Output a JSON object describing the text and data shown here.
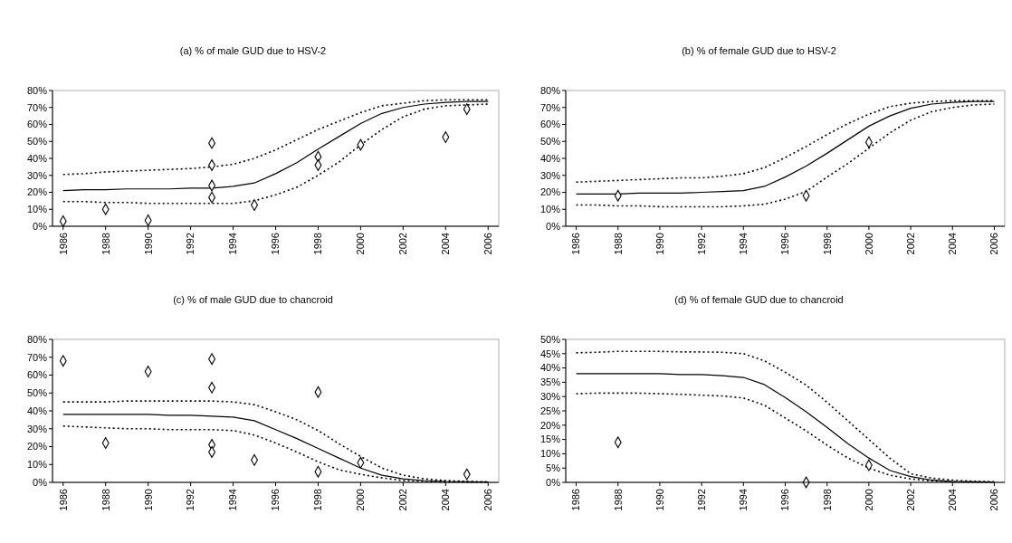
{
  "chart_data": [
    {
      "type": "line",
      "title": "(a) % of male GUD due to HSV-2",
      "xlim": [
        1985.5,
        2006.5
      ],
      "xticks": [
        1986,
        1988,
        1990,
        1992,
        1994,
        1996,
        1998,
        2000,
        2002,
        2004,
        2006
      ],
      "ylim": [
        0,
        80
      ],
      "yticks": [
        {
          "value": 0,
          "label": "0%"
        },
        {
          "value": 10,
          "label": "10%"
        },
        {
          "value": 20,
          "label": "20%"
        },
        {
          "value": 30,
          "label": "30%"
        },
        {
          "value": 40,
          "label": "40%"
        },
        {
          "value": 50,
          "label": "50%"
        },
        {
          "value": 60,
          "label": "60%"
        },
        {
          "value": 70,
          "label": "70%"
        },
        {
          "value": 80,
          "label": "80%"
        }
      ],
      "grid": false,
      "x": [
        1986,
        1987,
        1988,
        1989,
        1990,
        1991,
        1992,
        1993,
        1994,
        1995,
        1996,
        1997,
        1998,
        1999,
        2000,
        2001,
        2002,
        2003,
        2004,
        2005,
        2006
      ],
      "series": [
        {
          "type": "line",
          "color": "#000000",
          "line_style": "solid",
          "values": [
            21,
            21.5,
            21.5,
            22,
            22,
            22,
            22.5,
            22.5,
            23.5,
            25.5,
            31,
            37.5,
            45.5,
            53,
            60.5,
            66.5,
            70,
            72,
            73,
            73.5,
            73.5
          ]
        },
        {
          "type": "line",
          "color": "#000000",
          "line_style": "dotted",
          "values": [
            30.5,
            31,
            32,
            32.5,
            33,
            33.5,
            34,
            35,
            36.5,
            40,
            45,
            51,
            57,
            62,
            67,
            71,
            72.5,
            74,
            74.5,
            74.5,
            74.5
          ]
        },
        {
          "type": "line",
          "color": "#000000",
          "line_style": "dotted",
          "values": [
            14.5,
            14.5,
            14,
            14,
            13.5,
            13.5,
            13.5,
            13.5,
            13.5,
            15,
            18.5,
            23,
            30,
            38,
            48,
            57,
            64.5,
            69,
            71,
            71.5,
            72
          ]
        },
        {
          "type": "scatter",
          "color": "#000000",
          "marker": "diamond",
          "x": [
            1986,
            1988,
            1990,
            1993,
            1993,
            1993,
            1993,
            1995,
            1998,
            1998,
            2000,
            2004,
            2005
          ],
          "values": [
            3,
            10,
            3.5,
            49,
            36,
            24,
            17,
            12.5,
            41,
            36,
            48,
            52.5,
            69
          ]
        }
      ]
    },
    {
      "type": "line",
      "title": "(b) % of female GUD due to HSV-2",
      "xlim": [
        1985.5,
        2006.5
      ],
      "xticks": [
        1986,
        1988,
        1990,
        1992,
        1994,
        1996,
        1998,
        2000,
        2002,
        2004,
        2006
      ],
      "ylim": [
        0,
        80
      ],
      "yticks": [
        {
          "value": 0,
          "label": "0%"
        },
        {
          "value": 10,
          "label": "10%"
        },
        {
          "value": 20,
          "label": "20%"
        },
        {
          "value": 30,
          "label": "30%"
        },
        {
          "value": 40,
          "label": "40%"
        },
        {
          "value": 50,
          "label": "50%"
        },
        {
          "value": 60,
          "label": "60%"
        },
        {
          "value": 70,
          "label": "70%"
        },
        {
          "value": 80,
          "label": "80%"
        }
      ],
      "grid": false,
      "x": [
        1986,
        1987,
        1988,
        1989,
        1990,
        1991,
        1992,
        1993,
        1994,
        1995,
        1996,
        1997,
        1998,
        1999,
        2000,
        2001,
        2002,
        2003,
        2004,
        2005,
        2006
      ],
      "series": [
        {
          "type": "line",
          "color": "#000000",
          "line_style": "solid",
          "values": [
            19,
            19,
            19,
            19.5,
            19.5,
            19.5,
            20,
            20.5,
            21,
            23.5,
            29,
            35.5,
            43,
            51,
            59,
            65,
            69.5,
            72,
            73,
            73.5,
            73.5
          ]
        },
        {
          "type": "line",
          "color": "#000000",
          "line_style": "dotted",
          "values": [
            26,
            26.5,
            27,
            27.5,
            28,
            28.5,
            28.5,
            29.5,
            31,
            34.5,
            40.5,
            47,
            54,
            60.5,
            66,
            70.5,
            72.5,
            73.5,
            74,
            74,
            74
          ]
        },
        {
          "type": "line",
          "color": "#000000",
          "line_style": "dotted",
          "values": [
            12.5,
            12.5,
            12,
            12,
            11.5,
            11.5,
            11.5,
            11.5,
            12,
            13,
            16,
            20.5,
            29,
            37,
            46,
            55,
            62.5,
            67.5,
            70,
            71.5,
            72
          ]
        },
        {
          "type": "scatter",
          "color": "#000000",
          "marker": "diamond",
          "x": [
            1988,
            1997,
            2000
          ],
          "values": [
            18,
            18,
            49.5
          ]
        }
      ]
    },
    {
      "type": "line",
      "title": "(c) % of male GUD due to chancroid",
      "xlim": [
        1985.5,
        2006.5
      ],
      "xticks": [
        1986,
        1988,
        1990,
        1992,
        1994,
        1996,
        1998,
        2000,
        2002,
        2004,
        2006
      ],
      "ylim": [
        0,
        80
      ],
      "yticks": [
        {
          "value": 0,
          "label": "0%"
        },
        {
          "value": 10,
          "label": "10%"
        },
        {
          "value": 20,
          "label": "20%"
        },
        {
          "value": 30,
          "label": "30%"
        },
        {
          "value": 40,
          "label": "40%"
        },
        {
          "value": 50,
          "label": "50%"
        },
        {
          "value": 60,
          "label": "60%"
        },
        {
          "value": 70,
          "label": "70%"
        },
        {
          "value": 80,
          "label": "80%"
        }
      ],
      "grid": false,
      "x": [
        1986,
        1987,
        1988,
        1989,
        1990,
        1991,
        1992,
        1993,
        1994,
        1995,
        1996,
        1997,
        1998,
        1999,
        2000,
        2001,
        2002,
        2003,
        2004,
        2005,
        2006
      ],
      "series": [
        {
          "type": "line",
          "color": "#000000",
          "line_style": "solid",
          "values": [
            38,
            38,
            38,
            38,
            38,
            37.5,
            37.5,
            37,
            36.5,
            34.5,
            29.5,
            24.5,
            19,
            13.5,
            8,
            4,
            2,
            1,
            0.5,
            0.3,
            0.2
          ]
        },
        {
          "type": "line",
          "color": "#000000",
          "line_style": "dotted",
          "values": [
            45,
            45,
            45,
            45.5,
            45.5,
            45.5,
            45.5,
            45.5,
            45,
            43.5,
            39.5,
            35,
            29,
            21.5,
            14.5,
            8,
            4,
            2,
            1,
            0.5,
            0.3
          ]
        },
        {
          "type": "line",
          "color": "#000000",
          "line_style": "dotted",
          "values": [
            31.5,
            31,
            30.5,
            30,
            30,
            29.5,
            29.5,
            29.5,
            29,
            26.5,
            22,
            17,
            11.5,
            7,
            4.5,
            2.5,
            1,
            0.5,
            0.3,
            0.2,
            0.1
          ]
        },
        {
          "type": "scatter",
          "color": "#000000",
          "marker": "diamond",
          "x": [
            1986,
            1988,
            1990,
            1993,
            1993,
            1993,
            1993,
            1995,
            1998,
            1998,
            2000,
            2005
          ],
          "values": [
            68,
            22,
            62,
            69,
            53,
            21,
            17,
            12.5,
            50.5,
            6,
            11,
            4.5
          ]
        }
      ]
    },
    {
      "type": "line",
      "title": "(d) % of female GUD due to chancroid",
      "xlim": [
        1985.5,
        2006.5
      ],
      "xticks": [
        1986,
        1988,
        1990,
        1992,
        1994,
        1996,
        1998,
        2000,
        2002,
        2004,
        2006
      ],
      "ylim": [
        0,
        50
      ],
      "yticks": [
        {
          "value": 0,
          "label": "0%"
        },
        {
          "value": 5,
          "label": "5%"
        },
        {
          "value": 10,
          "label": "10%"
        },
        {
          "value": 15,
          "label": "15%"
        },
        {
          "value": 20,
          "label": "20%"
        },
        {
          "value": 25,
          "label": "25%"
        },
        {
          "value": 30,
          "label": "30%"
        },
        {
          "value": 35,
          "label": "35%"
        },
        {
          "value": 40,
          "label": "40%"
        },
        {
          "value": 45,
          "label": "45%"
        },
        {
          "value": 50,
          "label": "50%"
        }
      ],
      "grid": false,
      "x": [
        1986,
        1987,
        1988,
        1989,
        1990,
        1991,
        1992,
        1993,
        1994,
        1995,
        1996,
        1997,
        1998,
        1999,
        2000,
        2001,
        2002,
        2003,
        2004,
        2005,
        2006
      ],
      "series": [
        {
          "type": "line",
          "color": "#000000",
          "line_style": "solid",
          "values": [
            38,
            38,
            38,
            38,
            38,
            37.7,
            37.7,
            37.3,
            36.7,
            34.2,
            29.7,
            24.7,
            19.2,
            13.5,
            8.5,
            4.2,
            2,
            0.8,
            0.3,
            0.2,
            0.1
          ]
        },
        {
          "type": "line",
          "color": "#000000",
          "line_style": "dotted",
          "values": [
            45.3,
            45.5,
            45.8,
            45.8,
            45.8,
            45.6,
            45.6,
            45.5,
            45,
            42.5,
            38.5,
            34,
            28,
            21.5,
            15,
            8.5,
            3,
            1.5,
            0.8,
            0.4,
            0.2
          ]
        },
        {
          "type": "line",
          "color": "#000000",
          "line_style": "dotted",
          "values": [
            31,
            31.2,
            31.2,
            31.2,
            31,
            30.8,
            30.5,
            30.2,
            29.5,
            27,
            22.5,
            18,
            13,
            8.5,
            5,
            2.5,
            1.2,
            0.5,
            0.2,
            0.1,
            0.1
          ]
        },
        {
          "type": "scatter",
          "color": "#000000",
          "marker": "diamond",
          "x": [
            1988,
            1997,
            2000
          ],
          "values": [
            14,
            0,
            6
          ]
        }
      ]
    }
  ]
}
